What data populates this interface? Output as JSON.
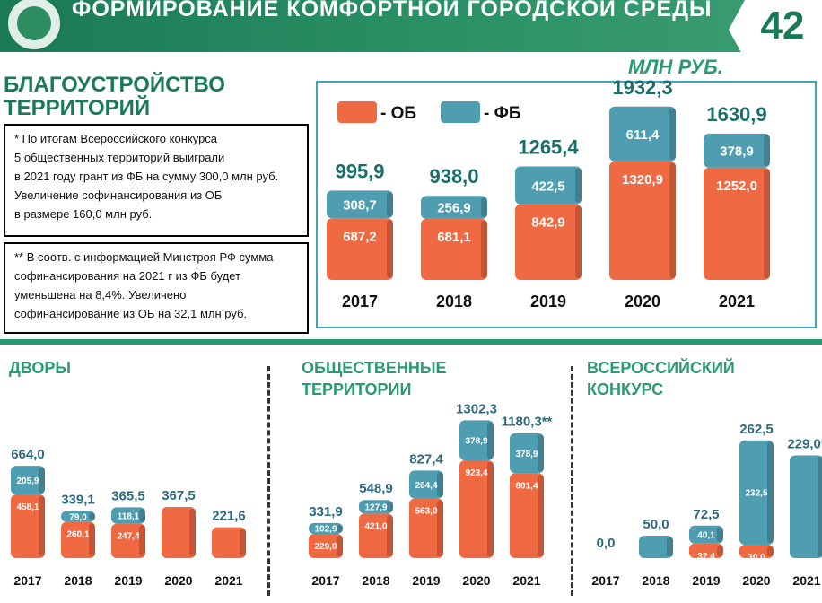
{
  "page": {
    "title": "ФОРМИРОВАНИЕ КОМФОРТНОЙ ГОРОДСКОЙ СРЕДЫ",
    "page_number": "42",
    "unit": "МЛН РУБ.",
    "section_title_line1": "БЛАГОУСТРОЙСТВО",
    "section_title_line2": "ТЕРРИТОРИЙ"
  },
  "notes": {
    "note1": [
      "* По итогам Всероссийского конкурса",
      "5 общественных территорий выиграли",
      "в 2021 году грант из ФБ на сумму 300,0 млн руб.",
      "Увеличение софинансирования из ОБ",
      "в размере 160,0 млн руб."
    ],
    "note2": [
      "** В соотв. с информацией Минстроя РФ сумма",
      "софинансирования на 2021 г из ФБ будет",
      "уменьшена на 8,4%.  Увеличено",
      "софинансирование из ОБ на 32,1 млн руб."
    ]
  },
  "legend": {
    "ob": "- ОБ",
    "fb": "- ФБ"
  },
  "colors": {
    "ob": "#ef6a43",
    "fb": "#4f9db1",
    "accent": "#2a9a72",
    "header": "#1a7a55"
  },
  "subtitles": {
    "yards": [
      "ДВОРЫ"
    ],
    "public": [
      "ОБЩЕСТВЕННЫЕ",
      "ТЕРРИТОРИИ"
    ],
    "contest": [
      "ВСЕРОССИЙСКИЙ",
      "КОНКУРС"
    ]
  },
  "chart_data": [
    {
      "type": "bar",
      "stacked": true,
      "title": "БЛАГОУСТРОЙСТВО ТЕРРИТОРИЙ",
      "categories": [
        "2017",
        "2018",
        "2019",
        "2020",
        "2021"
      ],
      "series": [
        {
          "name": "ОБ",
          "values": [
            687.2,
            681.1,
            842.9,
            1320.9,
            1252.0
          ],
          "labels": [
            "687,2",
            "681,1",
            "842,9",
            "1320,9",
            "1252,0"
          ]
        },
        {
          "name": "ФБ",
          "values": [
            308.7,
            256.9,
            422.5,
            611.4,
            378.9
          ],
          "labels": [
            "308,7",
            "256,9",
            "422,5",
            "611,4",
            "378,9"
          ]
        }
      ],
      "totals": [
        "995,9",
        "938,0",
        "1265,4",
        "1932,3",
        "1630,9"
      ],
      "legend": "top-left"
    },
    {
      "type": "bar",
      "stacked": true,
      "title": "ДВОРЫ",
      "categories": [
        "2017",
        "2018",
        "2019",
        "2020",
        "2021"
      ],
      "series": [
        {
          "values": [
            458.1,
            260.1,
            247.4,
            367.5,
            221.6
          ],
          "labels": [
            "458,1",
            "260,1",
            "247,4",
            "",
            ""
          ]
        },
        {
          "values": [
            205.9,
            79.0,
            118.1,
            0,
            0
          ],
          "labels": [
            "205,9",
            "79,0",
            "118,1",
            "",
            ""
          ]
        }
      ],
      "totals": [
        "664,0",
        "339,1",
        "365,5",
        "367,5",
        "221,6"
      ]
    },
    {
      "type": "bar",
      "stacked": true,
      "title": "ОБЩЕСТВЕННЫЕ ТЕРРИТОРИИ",
      "categories": [
        "2017",
        "2018",
        "2019",
        "2020",
        "2021"
      ],
      "series": [
        {
          "values": [
            229.0,
            421.0,
            563.0,
            923.4,
            801.4
          ],
          "labels": [
            "229,0",
            "421,0",
            "563,0",
            "923,4",
            "801,4"
          ]
        },
        {
          "values": [
            102.9,
            127.9,
            264.4,
            378.9,
            378.9
          ],
          "labels": [
            "102,9",
            "127,9",
            "264,4",
            "378,9",
            "378,9"
          ]
        }
      ],
      "totals": [
        "331,9",
        "548,9",
        "827,4",
        "1302,3",
        "1180,3**"
      ]
    },
    {
      "type": "bar",
      "stacked": true,
      "title": "ВСЕРОССИЙСКИЙ КОНКУРС",
      "categories": [
        "2017",
        "2018",
        "2019",
        "2020",
        "2021"
      ],
      "series": [
        {
          "values": [
            0,
            0,
            32.4,
            30.0,
            0
          ],
          "labels": [
            "",
            "",
            "32,4",
            "30,0",
            ""
          ]
        },
        {
          "values": [
            0,
            50.0,
            40.1,
            232.5,
            229.0
          ],
          "labels": [
            "",
            "",
            "40,1",
            "232,5",
            ""
          ]
        }
      ],
      "totals": [
        "0,0",
        "50,0",
        "72,5",
        "262,5",
        "229,0*"
      ]
    }
  ]
}
